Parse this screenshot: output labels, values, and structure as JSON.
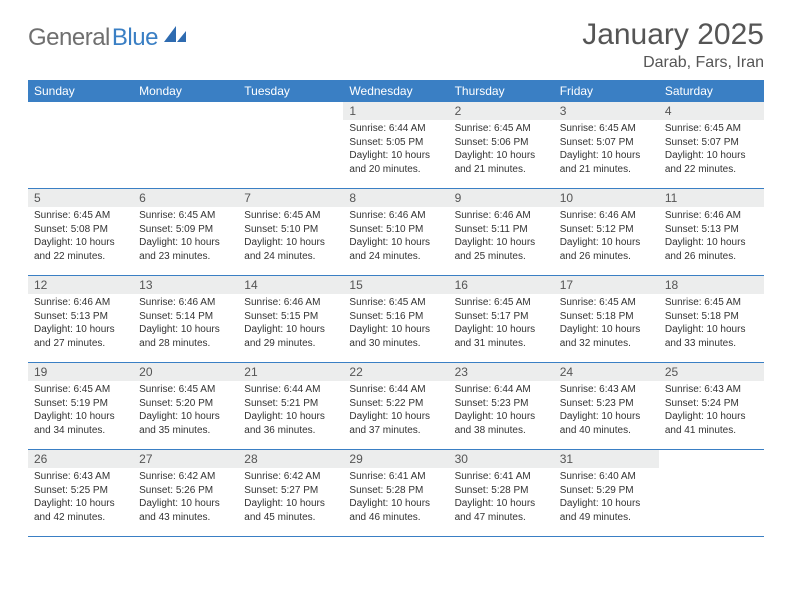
{
  "logo": {
    "part1": "General",
    "part2": "Blue"
  },
  "title": "January 2025",
  "location": "Darab, Fars, Iran",
  "header_bg": "#3a7fc4",
  "header_text_color": "#ffffff",
  "daynum_bg": "#eceded",
  "row_border_color": "#3a7fc4",
  "weekdays": [
    "Sunday",
    "Monday",
    "Tuesday",
    "Wednesday",
    "Thursday",
    "Friday",
    "Saturday"
  ],
  "weeks": [
    [
      {
        "empty": true
      },
      {
        "empty": true
      },
      {
        "empty": true
      },
      {
        "n": "1",
        "sr": "6:44 AM",
        "ss": "5:05 PM",
        "dl": "10 hours and 20 minutes."
      },
      {
        "n": "2",
        "sr": "6:45 AM",
        "ss": "5:06 PM",
        "dl": "10 hours and 21 minutes."
      },
      {
        "n": "3",
        "sr": "6:45 AM",
        "ss": "5:07 PM",
        "dl": "10 hours and 21 minutes."
      },
      {
        "n": "4",
        "sr": "6:45 AM",
        "ss": "5:07 PM",
        "dl": "10 hours and 22 minutes."
      }
    ],
    [
      {
        "n": "5",
        "sr": "6:45 AM",
        "ss": "5:08 PM",
        "dl": "10 hours and 22 minutes."
      },
      {
        "n": "6",
        "sr": "6:45 AM",
        "ss": "5:09 PM",
        "dl": "10 hours and 23 minutes."
      },
      {
        "n": "7",
        "sr": "6:45 AM",
        "ss": "5:10 PM",
        "dl": "10 hours and 24 minutes."
      },
      {
        "n": "8",
        "sr": "6:46 AM",
        "ss": "5:10 PM",
        "dl": "10 hours and 24 minutes."
      },
      {
        "n": "9",
        "sr": "6:46 AM",
        "ss": "5:11 PM",
        "dl": "10 hours and 25 minutes."
      },
      {
        "n": "10",
        "sr": "6:46 AM",
        "ss": "5:12 PM",
        "dl": "10 hours and 26 minutes."
      },
      {
        "n": "11",
        "sr": "6:46 AM",
        "ss": "5:13 PM",
        "dl": "10 hours and 26 minutes."
      }
    ],
    [
      {
        "n": "12",
        "sr": "6:46 AM",
        "ss": "5:13 PM",
        "dl": "10 hours and 27 minutes."
      },
      {
        "n": "13",
        "sr": "6:46 AM",
        "ss": "5:14 PM",
        "dl": "10 hours and 28 minutes."
      },
      {
        "n": "14",
        "sr": "6:46 AM",
        "ss": "5:15 PM",
        "dl": "10 hours and 29 minutes."
      },
      {
        "n": "15",
        "sr": "6:45 AM",
        "ss": "5:16 PM",
        "dl": "10 hours and 30 minutes."
      },
      {
        "n": "16",
        "sr": "6:45 AM",
        "ss": "5:17 PM",
        "dl": "10 hours and 31 minutes."
      },
      {
        "n": "17",
        "sr": "6:45 AM",
        "ss": "5:18 PM",
        "dl": "10 hours and 32 minutes."
      },
      {
        "n": "18",
        "sr": "6:45 AM",
        "ss": "5:18 PM",
        "dl": "10 hours and 33 minutes."
      }
    ],
    [
      {
        "n": "19",
        "sr": "6:45 AM",
        "ss": "5:19 PM",
        "dl": "10 hours and 34 minutes."
      },
      {
        "n": "20",
        "sr": "6:45 AM",
        "ss": "5:20 PM",
        "dl": "10 hours and 35 minutes."
      },
      {
        "n": "21",
        "sr": "6:44 AM",
        "ss": "5:21 PM",
        "dl": "10 hours and 36 minutes."
      },
      {
        "n": "22",
        "sr": "6:44 AM",
        "ss": "5:22 PM",
        "dl": "10 hours and 37 minutes."
      },
      {
        "n": "23",
        "sr": "6:44 AM",
        "ss": "5:23 PM",
        "dl": "10 hours and 38 minutes."
      },
      {
        "n": "24",
        "sr": "6:43 AM",
        "ss": "5:23 PM",
        "dl": "10 hours and 40 minutes."
      },
      {
        "n": "25",
        "sr": "6:43 AM",
        "ss": "5:24 PM",
        "dl": "10 hours and 41 minutes."
      }
    ],
    [
      {
        "n": "26",
        "sr": "6:43 AM",
        "ss": "5:25 PM",
        "dl": "10 hours and 42 minutes."
      },
      {
        "n": "27",
        "sr": "6:42 AM",
        "ss": "5:26 PM",
        "dl": "10 hours and 43 minutes."
      },
      {
        "n": "28",
        "sr": "6:42 AM",
        "ss": "5:27 PM",
        "dl": "10 hours and 45 minutes."
      },
      {
        "n": "29",
        "sr": "6:41 AM",
        "ss": "5:28 PM",
        "dl": "10 hours and 46 minutes."
      },
      {
        "n": "30",
        "sr": "6:41 AM",
        "ss": "5:28 PM",
        "dl": "10 hours and 47 minutes."
      },
      {
        "n": "31",
        "sr": "6:40 AM",
        "ss": "5:29 PM",
        "dl": "10 hours and 49 minutes."
      },
      {
        "empty": true
      }
    ]
  ]
}
